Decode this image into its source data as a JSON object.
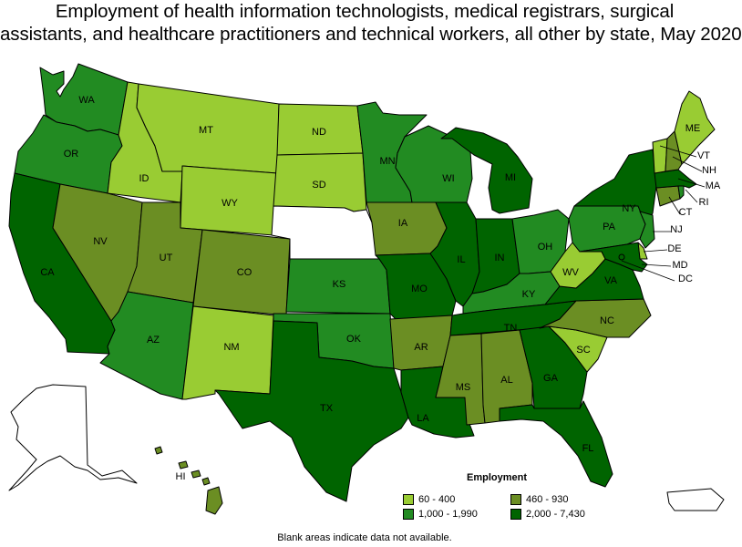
{
  "title": {
    "line1": "Employment of health information technologists, medical registrars, surgical",
    "line2": "assistants, and healthcare practitioners and technical workers, all other by state, May 2020"
  },
  "colors": {
    "c1": "#99cc33",
    "c2": "#228b22",
    "c3": "#6b8e23",
    "c4": "#006400",
    "na": "#ffffff"
  },
  "legend": {
    "title": "Employment",
    "items": [
      {
        "label": "60 - 400",
        "color_key": "c1"
      },
      {
        "label": "460 - 930",
        "color_key": "c3"
      },
      {
        "label": "1,000 - 1,990",
        "color_key": "c2"
      },
      {
        "label": "2,000 - 7,430",
        "color_key": "c4"
      }
    ]
  },
  "footnote": "Blank areas indicate data not available.",
  "states": {
    "WA": {
      "label": "WA",
      "class": "c2"
    },
    "OR": {
      "label": "OR",
      "class": "c2"
    },
    "CA": {
      "label": "CA",
      "class": "c4"
    },
    "ID": {
      "label": "ID",
      "class": "c1"
    },
    "NV": {
      "label": "NV",
      "class": "c3"
    },
    "MT": {
      "label": "MT",
      "class": "c1"
    },
    "WY": {
      "label": "WY",
      "class": "c1"
    },
    "UT": {
      "label": "UT",
      "class": "c3"
    },
    "AZ": {
      "label": "AZ",
      "class": "c2"
    },
    "CO": {
      "label": "CO",
      "class": "c3"
    },
    "NM": {
      "label": "NM",
      "class": "c1"
    },
    "ND": {
      "label": "ND",
      "class": "c1"
    },
    "SD": {
      "label": "SD",
      "class": "c1"
    },
    "NE": {
      "label": "",
      "class": "na"
    },
    "KS": {
      "label": "KS",
      "class": "c2"
    },
    "OK": {
      "label": "OK",
      "class": "c2"
    },
    "TX": {
      "label": "TX",
      "class": "c4"
    },
    "MN": {
      "label": "MN",
      "class": "c2"
    },
    "IA": {
      "label": "IA",
      "class": "c3"
    },
    "MO": {
      "label": "MO",
      "class": "c4"
    },
    "AR": {
      "label": "AR",
      "class": "c3"
    },
    "LA": {
      "label": "LA",
      "class": "c4"
    },
    "WI": {
      "label": "WI",
      "class": "c2"
    },
    "IL": {
      "label": "IL",
      "class": "c4"
    },
    "MI": {
      "label": "MI",
      "class": "c4"
    },
    "IN": {
      "label": "IN",
      "class": "c4"
    },
    "OH": {
      "label": "OH",
      "class": "c2"
    },
    "KY": {
      "label": "KY",
      "class": "c2"
    },
    "TN": {
      "label": "TN",
      "class": "c4"
    },
    "MS": {
      "label": "MS",
      "class": "c3"
    },
    "AL": {
      "label": "AL",
      "class": "c3"
    },
    "GA": {
      "label": "GA",
      "class": "c4"
    },
    "FL": {
      "label": "FL",
      "class": "c4"
    },
    "SC": {
      "label": "SC",
      "class": "c1"
    },
    "NC": {
      "label": "NC",
      "class": "c3"
    },
    "VA": {
      "label": "VA",
      "class": "c4"
    },
    "WV": {
      "label": "WV",
      "class": "c1"
    },
    "PA": {
      "label": "PA",
      "class": "c2"
    },
    "NY": {
      "label": "NY",
      "class": "c4"
    },
    "NJ": {
      "label": "NJ",
      "class": "c2"
    },
    "DE": {
      "label": "DE",
      "class": "c1"
    },
    "MD": {
      "label": "MD",
      "class": "c4"
    },
    "DC": {
      "label": "DC",
      "class": "c4"
    },
    "CT": {
      "label": "CT",
      "class": "c3"
    },
    "RI": {
      "label": "RI",
      "class": "c2"
    },
    "MA": {
      "label": "MA",
      "class": "c4"
    },
    "VT": {
      "label": "VT",
      "class": "c1"
    },
    "NH": {
      "label": "NH",
      "class": "c3"
    },
    "ME": {
      "label": "ME",
      "class": "c1"
    },
    "AK": {
      "label": "",
      "class": "na"
    },
    "HI": {
      "label": "HI",
      "class": "c3"
    },
    "PR": {
      "label": "",
      "class": "na"
    }
  }
}
